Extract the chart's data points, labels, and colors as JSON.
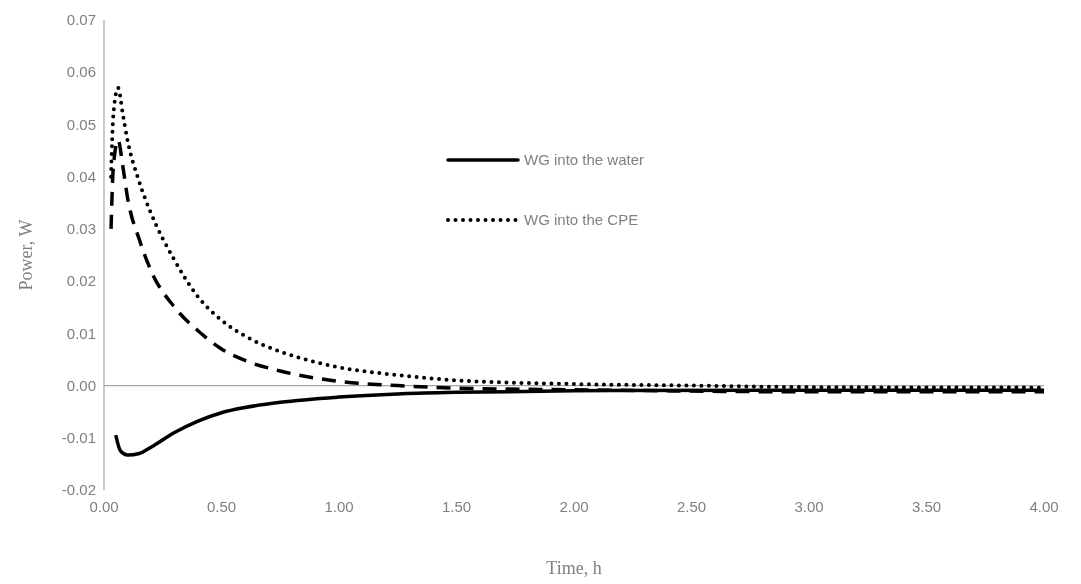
{
  "chart_data": {
    "type": "line",
    "xlabel": "Time, h",
    "ylabel": "Power, W",
    "xlim": [
      0,
      4
    ],
    "ylim": [
      -0.02,
      0.07
    ],
    "xticks": [
      {
        "value": 0,
        "label": "0.00"
      },
      {
        "value": 0.5,
        "label": "0.50"
      },
      {
        "value": 1,
        "label": "1.00"
      },
      {
        "value": 1.5,
        "label": "1.50"
      },
      {
        "value": 2,
        "label": "2.00"
      },
      {
        "value": 2.5,
        "label": "2.50"
      },
      {
        "value": 3,
        "label": "3.00"
      },
      {
        "value": 3.5,
        "label": "3.50"
      },
      {
        "value": 4,
        "label": "4.00"
      }
    ],
    "yticks": [
      {
        "value": -0.02,
        "label": "-0.02"
      },
      {
        "value": -0.01,
        "label": "-0.01"
      },
      {
        "value": 0,
        "label": "0.00"
      },
      {
        "value": 0.01,
        "label": "0.01"
      },
      {
        "value": 0.02,
        "label": "0.02"
      },
      {
        "value": 0.03,
        "label": "0.03"
      },
      {
        "value": 0.04,
        "label": "0.04"
      },
      {
        "value": 0.05,
        "label": "0.05"
      },
      {
        "value": 0.06,
        "label": "0.06"
      },
      {
        "value": 0.07,
        "label": "0.07"
      }
    ],
    "legend": "top",
    "marker": "none",
    "series": [
      {
        "name": "WG into the water",
        "color": "#000000",
        "line_style": "solid",
        "x": [
          0.05,
          0.07,
          0.1,
          0.15,
          0.2,
          0.3,
          0.4,
          0.5,
          0.6,
          0.75,
          1.0,
          1.25,
          1.5,
          2.0,
          3.0,
          4.0
        ],
        "values": [
          -0.0095,
          -0.0125,
          -0.0133,
          -0.013,
          -0.0118,
          -0.009,
          -0.0068,
          -0.0052,
          -0.0042,
          -0.0032,
          -0.0022,
          -0.0016,
          -0.0013,
          -0.001,
          -0.0009,
          -0.0009
        ]
      },
      {
        "name": "WG into the CPE",
        "color": "#000000",
        "line_style": "dotted",
        "x": [
          0.03,
          0.04,
          0.06,
          0.08,
          0.1,
          0.15,
          0.2,
          0.3,
          0.4,
          0.5,
          0.6,
          0.75,
          0.9,
          1.0,
          1.25,
          1.5,
          2.0,
          2.5,
          3.0,
          4.0
        ],
        "values": [
          0.04,
          0.052,
          0.057,
          0.052,
          0.047,
          0.039,
          0.033,
          0.024,
          0.017,
          0.0125,
          0.0095,
          0.0065,
          0.0045,
          0.0035,
          0.002,
          0.001,
          0.0003,
          0,
          -0.0003,
          -0.0004
        ]
      },
      {
        "color": "#000000",
        "line_style": "dashed",
        "x": [
          0.03,
          0.04,
          0.06,
          0.08,
          0.1,
          0.15,
          0.2,
          0.3,
          0.4,
          0.5,
          0.6,
          0.75,
          1.0,
          1.25,
          1.5,
          2.0,
          3.0,
          4.0
        ],
        "values": [
          0.03,
          0.042,
          0.047,
          0.042,
          0.036,
          0.028,
          0.022,
          0.015,
          0.0105,
          0.007,
          0.0048,
          0.0028,
          0.0008,
          0,
          -0.0005,
          -0.0008,
          -0.0012,
          -0.0012
        ]
      }
    ]
  }
}
